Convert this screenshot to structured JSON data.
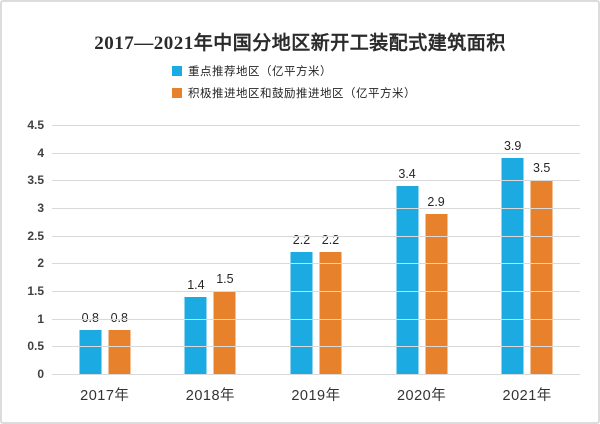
{
  "chart_data": {
    "type": "bar",
    "title": "2017—2021年中国分地区新开工装配式建筑面积",
    "categories": [
      "2017年",
      "2018年",
      "2019年",
      "2020年",
      "2021年"
    ],
    "series": [
      {
        "name": "重点推荐地区（亿平方米）",
        "color": "#1BAAE1",
        "values": [
          0.8,
          1.4,
          2.2,
          3.4,
          3.9
        ],
        "labels": [
          "0.8",
          "1.4",
          "2.2",
          "3.4",
          "3.9"
        ]
      },
      {
        "name": "积极推进地区和鼓励推进地区（亿平方米）",
        "color": "#E8812C",
        "values": [
          0.8,
          1.5,
          2.2,
          2.9,
          3.5
        ],
        "labels": [
          "0.8",
          "1.5",
          "2.2",
          "2.9",
          "3.5"
        ]
      }
    ],
    "ylim": [
      0,
      4.5
    ],
    "ytick_step": 0.5,
    "yticks": [
      "0",
      "0.5",
      "1",
      "1.5",
      "2",
      "2.5",
      "3",
      "3.5",
      "4",
      "4.5"
    ],
    "grid": true,
    "grid_color": "#d9d9d9",
    "legend_position": "top-center-below-title"
  }
}
